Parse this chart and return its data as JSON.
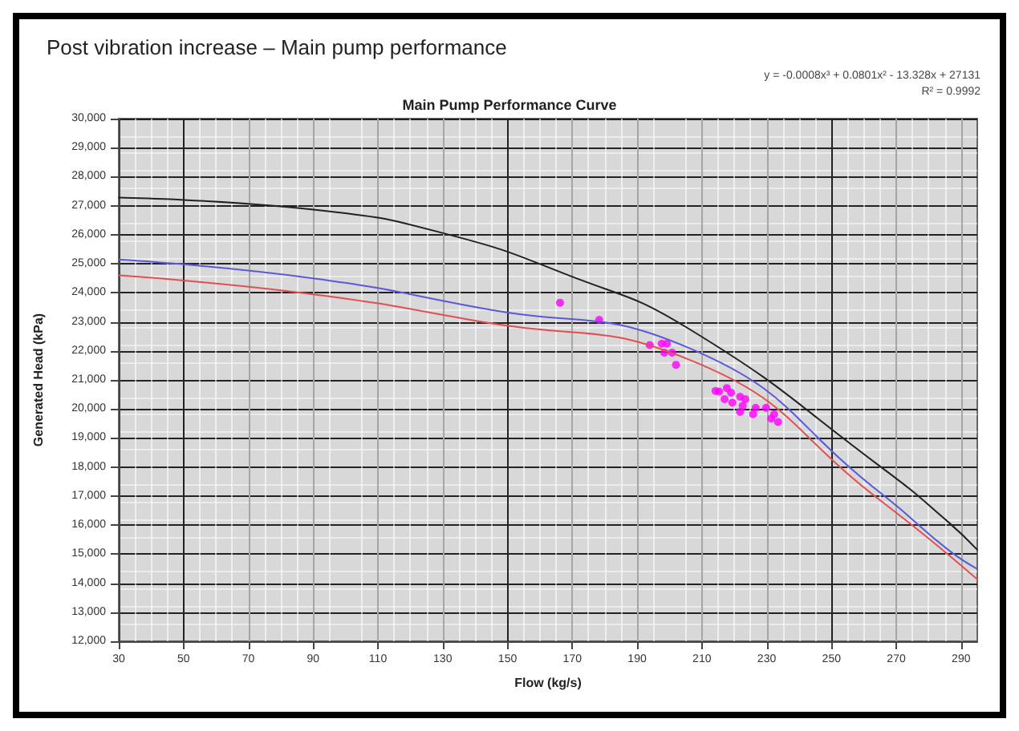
{
  "chart_data": {
    "type": "line",
    "title": "Post vibration increase – Main pump performance",
    "subtitle": "Main Pump Performance Curve",
    "xlabel": "Flow (kg/s)",
    "ylabel": "Generated Head (kPa)",
    "annotations": [
      "y = -0.0008x³ + 0.0801x² - 13.328x + 27131",
      "R² = 0.9992"
    ],
    "xlim": [
      30,
      295
    ],
    "xticks": [
      30,
      50,
      70,
      90,
      110,
      130,
      150,
      170,
      190,
      210,
      230,
      250,
      270,
      290
    ],
    "ylim": [
      12000,
      30000
    ],
    "yticks": [
      {
        "value": 12000,
        "label": "12,000"
      },
      {
        "value": 13000,
        "label": "13,000"
      },
      {
        "value": 14000,
        "label": "14,000"
      },
      {
        "value": 15000,
        "label": "15,000"
      },
      {
        "value": 16000,
        "label": "16,000"
      },
      {
        "value": 17000,
        "label": "17,000"
      },
      {
        "value": 18000,
        "label": "18,000"
      },
      {
        "value": 19000,
        "label": "19,000"
      },
      {
        "value": 20000,
        "label": "20,000"
      },
      {
        "value": 21000,
        "label": "21,000"
      },
      {
        "value": 22000,
        "label": "22,000"
      },
      {
        "value": 23000,
        "label": "23,000"
      },
      {
        "value": 24000,
        "label": "24,000"
      },
      {
        "value": 25000,
        "label": "25,000"
      },
      {
        "value": 26000,
        "label": "26,000"
      },
      {
        "value": 27000,
        "label": "27,000"
      },
      {
        "value": 28000,
        "label": "28,000"
      },
      {
        "value": 29000,
        "label": "29,000"
      },
      {
        "value": 30000,
        "label": "30,000"
      }
    ],
    "grid": true,
    "marker": "none",
    "line_style": "solid",
    "series": [
      {
        "color": "#222222",
        "x": [
          30,
          94,
          132,
          168,
          206,
          266,
          286,
          295
        ],
        "values": [
          27280,
          26820,
          26000,
          24640,
          22760,
          17940,
          16110,
          15150
        ]
      },
      {
        "color": "#5a5ad8",
        "x": [
          30,
          90,
          142,
          206,
          266,
          286,
          295
        ],
        "values": [
          25150,
          24500,
          23470,
          22100,
          17030,
          15150,
          14490
        ]
      },
      {
        "color": "#e05050",
        "x": [
          30,
          90,
          142,
          206,
          266,
          295
        ],
        "values": [
          24600,
          23950,
          23000,
          21700,
          16770,
          14130
        ]
      },
      {
        "type": "scatter",
        "color": "#ff00ff",
        "marker": "circle",
        "x": [
          166.2,
          178.3,
          193.9,
          197.6,
          199.2,
          198.4,
          200.8,
          202,
          214.2,
          215.3,
          217.7,
          219,
          217,
          219.4,
          221.8,
          222.6,
          223.4,
          221.8,
          225.8,
          226.6,
          229.8,
          231.4,
          233.5,
          232.3
        ],
        "values": [
          23660,
          23070,
          22200,
          22250,
          22250,
          21940,
          21940,
          21520,
          20620,
          20600,
          20720,
          20560,
          20340,
          20220,
          20420,
          20110,
          20340,
          19900,
          19820,
          20040,
          20040,
          19670,
          19550,
          19820
        ]
      }
    ]
  }
}
